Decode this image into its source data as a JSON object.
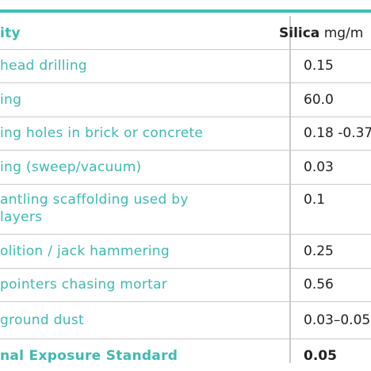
{
  "table": {
    "header": {
      "activity": "ity",
      "silica_bold": "Silica",
      "silica_unit": "mg/m"
    },
    "rows": [
      {
        "activity": [
          "head drilling"
        ],
        "value": "0.15"
      },
      {
        "activity": [
          "ing"
        ],
        "value": "60.0"
      },
      {
        "activity": [
          "ing holes in brick or concrete"
        ],
        "value": "0.18 -0.37"
      },
      {
        "activity": [
          "ing (sweep/vacuum)"
        ],
        "value": "0.03"
      },
      {
        "activity": [
          "antling scaffolding used by",
          "layers"
        ],
        "value": "0.1"
      },
      {
        "activity": [
          "olition / jack hammering"
        ],
        "value": "0.25"
      },
      {
        "activity": [
          "pointers chasing mortar"
        ],
        "value": "0.56"
      },
      {
        "activity": [
          "ground dust"
        ],
        "value": "0.03–0.05"
      },
      {
        "activity": [
          "nal Exposure Standard"
        ],
        "value": "0.05"
      }
    ]
  }
}
